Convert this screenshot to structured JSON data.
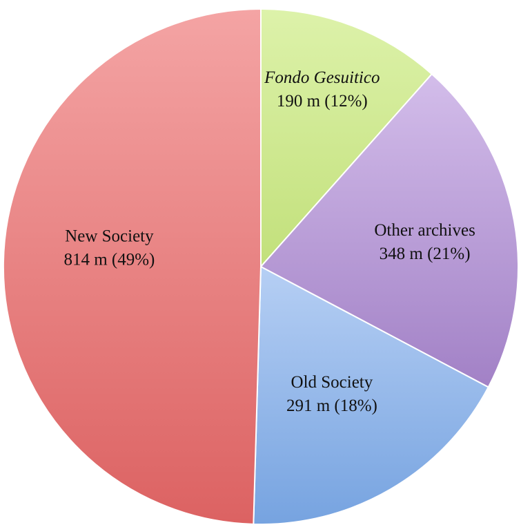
{
  "chart_data": {
    "type": "pie",
    "start_angle_deg": 0,
    "direction": "clockwise",
    "unit": "m",
    "slices": [
      {
        "name": "Fondo Gesuitico",
        "value": 190,
        "percent": 12,
        "value_label": "190 m (12%)",
        "italic": true,
        "color_light": "#ddf2aa",
        "color_dark": "#c2e07b"
      },
      {
        "name": "Other archives",
        "value": 348,
        "percent": 21,
        "value_label": "348 m (21%)",
        "italic": false,
        "color_light": "#d3bdea",
        "color_dark": "#a281c6"
      },
      {
        "name": "Old Society",
        "value": 291,
        "percent": 18,
        "value_label": "291 m (18%)",
        "italic": false,
        "color_light": "#b6cff4",
        "color_dark": "#76a3e0"
      },
      {
        "name": "New Society",
        "value": 814,
        "percent": 49,
        "value_label": "814 m (49%)",
        "italic": false,
        "color_light": "#f4a4a4",
        "color_dark": "#dc6262"
      }
    ]
  }
}
